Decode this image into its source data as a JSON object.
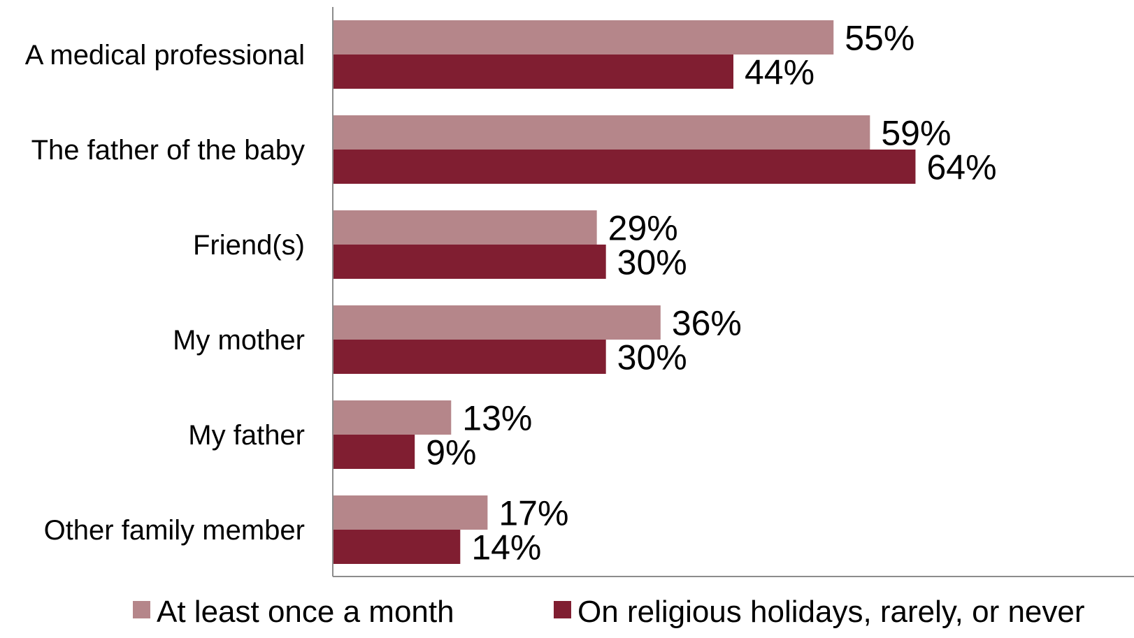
{
  "chart_data": {
    "type": "bar",
    "orientation": "horizontal",
    "title": "",
    "xlabel": "",
    "ylabel": "",
    "categories": [
      "A medical professional",
      "The father of the baby",
      "Friend(s)",
      "My mother",
      "My father",
      "Other family member"
    ],
    "series": [
      {
        "name": "At least once a month",
        "color": "#b5868a",
        "values": [
          55,
          59,
          29,
          36,
          13,
          17
        ],
        "labels": [
          "55%",
          "59%",
          "29%",
          "36%",
          "13%",
          "17%"
        ]
      },
      {
        "name": "On religious holidays, rarely, or never",
        "color": "#801e31",
        "values": [
          44,
          64,
          30,
          30,
          9,
          14
        ],
        "labels": [
          "44%",
          "64%",
          "30%",
          "30%",
          "9%",
          "14%"
        ]
      }
    ],
    "xlim": [
      0,
      88
    ],
    "grid": false,
    "legend_position": "bottom"
  }
}
